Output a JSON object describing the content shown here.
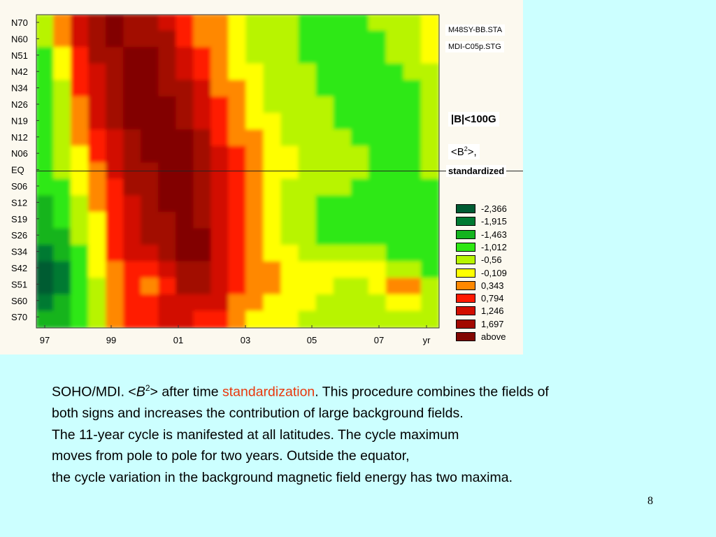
{
  "chart_data": {
    "type": "heatmap",
    "x_ticks": [
      "97",
      "99",
      "01",
      "03",
      "05",
      "07",
      "yr"
    ],
    "y_ticks": [
      "N70",
      "N60",
      "N51",
      "N42",
      "N34",
      "N26",
      "N19",
      "N12",
      "N06",
      "EQ",
      "S06",
      "S12",
      "S19",
      "S26",
      "S34",
      "S42",
      "S51",
      "S60",
      "S70"
    ],
    "dataset_tags": [
      "M48SY-BB.STA",
      "MDI-C05p.STG"
    ],
    "field_label": "|B|<100G",
    "quantity": {
      "prefix": "<B",
      "sup": "2",
      "suffix": ">,",
      "note": "standardized"
    },
    "legend": [
      {
        "label": "-2,366",
        "color": "#005c33"
      },
      {
        "label": "-1,915",
        "color": "#007a32"
      },
      {
        "label": "-1,463",
        "color": "#14b41e"
      },
      {
        "label": "-1,012",
        "color": "#2ee812"
      },
      {
        "label": "-0,56",
        "color": "#b8f400"
      },
      {
        "label": "-0,109",
        "color": "#ffff00"
      },
      {
        "label": "0,343",
        "color": "#ff8800"
      },
      {
        "label": "0,794",
        "color": "#ff1a00"
      },
      {
        "label": "1,246",
        "color": "#d20e00"
      },
      {
        "label": "1,697",
        "color": "#a20800"
      },
      {
        "label": "above",
        "color": "#820600"
      }
    ],
    "level_grid": [
      [
        4,
        6,
        8,
        9,
        10,
        9,
        9,
        8,
        7,
        6,
        6,
        5,
        4,
        4,
        4,
        3,
        3,
        3,
        3,
        4,
        4,
        4,
        5
      ],
      [
        4,
        6,
        8,
        9,
        10,
        9,
        9,
        9,
        7,
        6,
        6,
        5,
        4,
        4,
        4,
        3,
        3,
        3,
        3,
        3,
        4,
        4,
        5
      ],
      [
        3,
        5,
        7,
        9,
        9,
        10,
        10,
        9,
        8,
        7,
        6,
        5,
        4,
        4,
        4,
        3,
        3,
        3,
        3,
        3,
        4,
        4,
        5
      ],
      [
        3,
        5,
        7,
        8,
        9,
        10,
        10,
        9,
        8,
        7,
        6,
        5,
        5,
        4,
        4,
        4,
        3,
        3,
        3,
        3,
        3,
        4,
        4
      ],
      [
        3,
        4,
        7,
        8,
        9,
        10,
        10,
        9,
        9,
        8,
        6,
        6,
        5,
        4,
        4,
        4,
        3,
        3,
        3,
        3,
        3,
        3,
        4
      ],
      [
        3,
        4,
        6,
        8,
        9,
        10,
        10,
        10,
        9,
        8,
        7,
        6,
        5,
        4,
        4,
        4,
        4,
        3,
        3,
        3,
        3,
        3,
        4
      ],
      [
        3,
        4,
        6,
        8,
        9,
        10,
        10,
        10,
        9,
        8,
        7,
        6,
        5,
        5,
        4,
        4,
        4,
        3,
        3,
        3,
        3,
        3,
        4
      ],
      [
        3,
        4,
        6,
        7,
        8,
        9,
        10,
        10,
        10,
        9,
        7,
        6,
        6,
        5,
        4,
        4,
        4,
        4,
        3,
        3,
        3,
        3,
        4
      ],
      [
        3,
        4,
        5,
        7,
        8,
        9,
        10,
        10,
        10,
        9,
        8,
        7,
        6,
        5,
        5,
        4,
        4,
        4,
        4,
        3,
        3,
        3,
        4
      ],
      [
        3,
        4,
        5,
        6,
        8,
        9,
        9,
        10,
        10,
        9,
        8,
        7,
        6,
        5,
        5,
        4,
        4,
        4,
        4,
        3,
        3,
        3,
        4
      ],
      [
        3,
        3,
        5,
        6,
        7,
        9,
        9,
        10,
        10,
        9,
        8,
        7,
        6,
        5,
        4,
        4,
        4,
        4,
        3,
        3,
        3,
        3,
        3
      ],
      [
        2,
        3,
        4,
        6,
        7,
        8,
        9,
        10,
        10,
        9,
        8,
        7,
        6,
        5,
        4,
        4,
        3,
        3,
        3,
        3,
        3,
        3,
        3
      ],
      [
        2,
        3,
        4,
        5,
        7,
        8,
        9,
        9,
        10,
        9,
        8,
        7,
        6,
        5,
        4,
        4,
        3,
        3,
        3,
        3,
        3,
        3,
        3
      ],
      [
        2,
        2,
        4,
        5,
        7,
        8,
        9,
        9,
        10,
        10,
        8,
        7,
        6,
        5,
        4,
        4,
        3,
        3,
        3,
        3,
        3,
        3,
        3
      ],
      [
        1,
        2,
        3,
        5,
        7,
        8,
        8,
        9,
        10,
        10,
        8,
        7,
        6,
        5,
        5,
        4,
        4,
        4,
        4,
        4,
        3,
        3,
        3
      ],
      [
        0,
        1,
        3,
        5,
        6,
        7,
        7,
        8,
        9,
        9,
        8,
        7,
        6,
        6,
        5,
        5,
        5,
        5,
        5,
        5,
        4,
        4,
        3
      ],
      [
        0,
        1,
        3,
        4,
        6,
        7,
        6,
        7,
        9,
        9,
        8,
        7,
        6,
        6,
        5,
        5,
        5,
        4,
        4,
        5,
        6,
        6,
        4
      ],
      [
        1,
        2,
        3,
        4,
        6,
        7,
        7,
        8,
        8,
        8,
        8,
        6,
        6,
        5,
        5,
        5,
        4,
        4,
        4,
        4,
        5,
        5,
        4
      ],
      [
        2,
        2,
        3,
        4,
        6,
        7,
        7,
        8,
        8,
        7,
        7,
        6,
        5,
        5,
        5,
        4,
        4,
        4,
        4,
        4,
        4,
        4,
        4
      ]
    ]
  },
  "caption": {
    "line1_pre": "SOHO/MDI. <",
    "line1_var": "B",
    "line1_sup": "2",
    "line1_mid": "> after time ",
    "line1_hl": "standardization",
    "line1_post": ". This procedure combines the fields of",
    "line2": "both signs and  increases the contribution of  large background fields.",
    "line3": "The 11-year cycle is manifested at all latitudes. The cycle maximum",
    "line4": "moves from pole to pole for two years. Outside the equator,",
    "line5": "the cycle variation in the background magnetic field energy has two maxima."
  },
  "page_number": "8"
}
